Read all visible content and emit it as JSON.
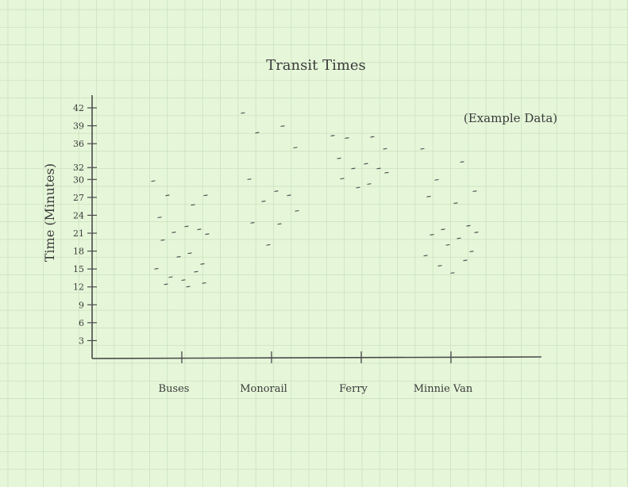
{
  "chart_data": {
    "type": "scatter",
    "title": "Transit Times",
    "annotation": "(Example Data)",
    "xlabel": "",
    "ylabel": "Time (Minutes)",
    "ylim": [
      0,
      42
    ],
    "yticks": [
      3,
      6,
      9,
      12,
      15,
      18,
      21,
      24,
      27,
      30,
      32,
      36,
      39,
      42
    ],
    "categories": [
      "Buses",
      "Monorail",
      "Ferry",
      "Minnie Van"
    ],
    "grid": true,
    "legend": "none",
    "points": [
      {
        "category": "Buses",
        "values": [
          29.7,
          25.7,
          27.3,
          27.3,
          23.6,
          22.1,
          21.6,
          21.1,
          20.8,
          19.8,
          17.6,
          17.0,
          15.8,
          15.0,
          14.5,
          13.6,
          13.1,
          12.6,
          12.4,
          12.0
        ]
      },
      {
        "category": "Monorail",
        "values": [
          41.1,
          38.9,
          37.8,
          35.3,
          30.0,
          28.0,
          27.3,
          26.3,
          24.7,
          22.7,
          22.5,
          19.0
        ]
      },
      {
        "category": "Ferry",
        "values": [
          37.3,
          37.1,
          36.9,
          35.1,
          33.5,
          32.6,
          31.8,
          31.8,
          31.1,
          30.1,
          29.2,
          28.6
        ]
      },
      {
        "category": "Minnie Van",
        "values": [
          35.1,
          32.9,
          29.9,
          28.0,
          27.1,
          26.0,
          22.2,
          21.6,
          21.1,
          20.7,
          20.1,
          19.0,
          17.9,
          17.2,
          16.4,
          15.5,
          14.3
        ]
      }
    ],
    "colors": {
      "background": "#e6f7d9",
      "grid": "#c5dfbb",
      "ink": "#3a3a3a"
    }
  }
}
